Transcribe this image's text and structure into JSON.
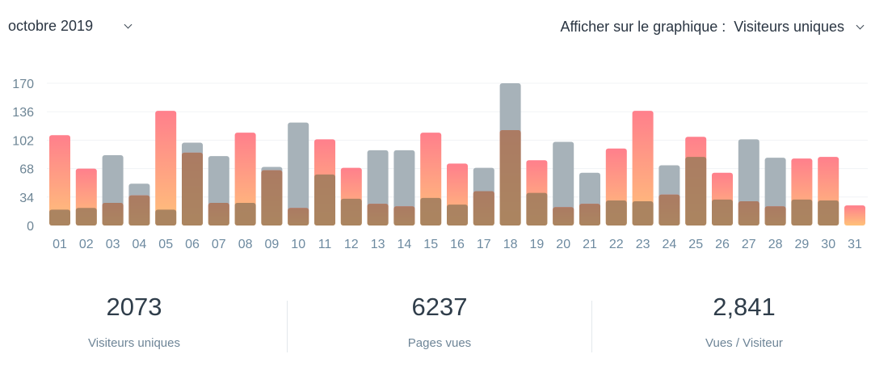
{
  "header": {
    "month_label": "octobre 2019",
    "display_prefix": "Afficher sur le graphique :",
    "display_value": "Visiteurs uniques"
  },
  "colors": {
    "bar_gradient_top": "#ff7f8c",
    "bar_gradient_bottom": "#ffc27a",
    "bar_overlay_gray": "#a7b2b9",
    "bar_overlay_brown": "#9c7a5c",
    "grid": "#f1f3f5",
    "tick_y": "#6d8595",
    "tick_x": "#6d8aa0"
  },
  "chart_data": {
    "type": "bar",
    "title": "",
    "xlabel": "",
    "ylabel": "",
    "ylim": [
      0,
      170
    ],
    "yticks": [
      0,
      34,
      68,
      102,
      136,
      170
    ],
    "grid": true,
    "categories": [
      "01",
      "02",
      "03",
      "04",
      "05",
      "06",
      "07",
      "08",
      "09",
      "10",
      "11",
      "12",
      "13",
      "14",
      "15",
      "16",
      "17",
      "18",
      "19",
      "20",
      "21",
      "22",
      "23",
      "24",
      "25",
      "26",
      "27",
      "28",
      "29",
      "30",
      "31"
    ],
    "series": [
      {
        "values": [
          108,
          68,
          84,
          50,
          137,
          99,
          83,
          111,
          70,
          123,
          103,
          69,
          90,
          90,
          111,
          74,
          69,
          170,
          78,
          100,
          63,
          92,
          137,
          72,
          106,
          63,
          103,
          81,
          80,
          82,
          24
        ]
      },
      {
        "values": [
          19,
          21,
          27,
          36,
          19,
          87,
          27,
          27,
          66,
          21,
          61,
          32,
          26,
          23,
          33,
          25,
          41,
          114,
          39,
          22,
          26,
          30,
          29,
          37,
          82,
          31,
          29,
          23,
          31,
          30,
          0
        ]
      }
    ],
    "current_series": [
      1,
      1,
      0,
      0,
      1,
      0,
      0,
      1,
      0,
      0,
      1,
      1,
      0,
      0,
      1,
      1,
      0,
      0,
      1,
      0,
      0,
      1,
      1,
      0,
      1,
      1,
      0,
      0,
      1,
      1,
      1
    ]
  },
  "stats": [
    {
      "value": "2073",
      "label": "Visiteurs uniques"
    },
    {
      "value": "6237",
      "label": "Pages vues"
    },
    {
      "value": "2,841",
      "label": "Vues / Visiteur"
    }
  ]
}
